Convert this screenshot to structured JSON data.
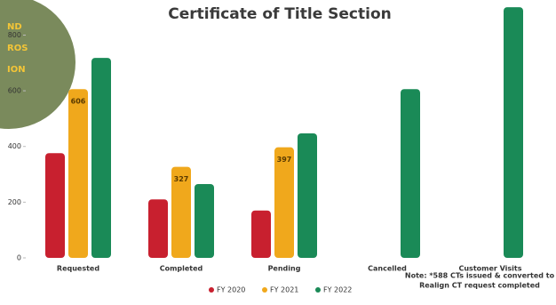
{
  "chart_data": {
    "type": "bar",
    "title": "Certificate of Title Section",
    "badge": [
      "ND",
      "ROS",
      "ION"
    ],
    "categories": [
      "Requested",
      "Completed",
      "Pending",
      "Cancelled",
      "Customer Visits"
    ],
    "series": [
      {
        "name": "FY 2020",
        "color": "#c8202f",
        "values": [
          376,
          210,
          170,
          null,
          null
        ],
        "value_labels": [
          null,
          null,
          null,
          null,
          null
        ]
      },
      {
        "name": "FY 2021",
        "color": "#f0a81c",
        "values": [
          606,
          327,
          397,
          null,
          null
        ],
        "value_labels": [
          "606",
          "327",
          "397",
          null,
          null
        ]
      },
      {
        "name": "FY 2022",
        "color": "#1a8a57",
        "values": [
          718,
          265,
          447,
          606,
          900
        ],
        "value_labels": [
          null,
          null,
          null,
          null,
          null
        ]
      }
    ],
    "ylim": [
      0,
      910
    ],
    "yticks": [
      0,
      200,
      400,
      600,
      800
    ],
    "note": [
      "Note: *588 CTs issued & converted to",
      "Realign CT request completed"
    ]
  }
}
